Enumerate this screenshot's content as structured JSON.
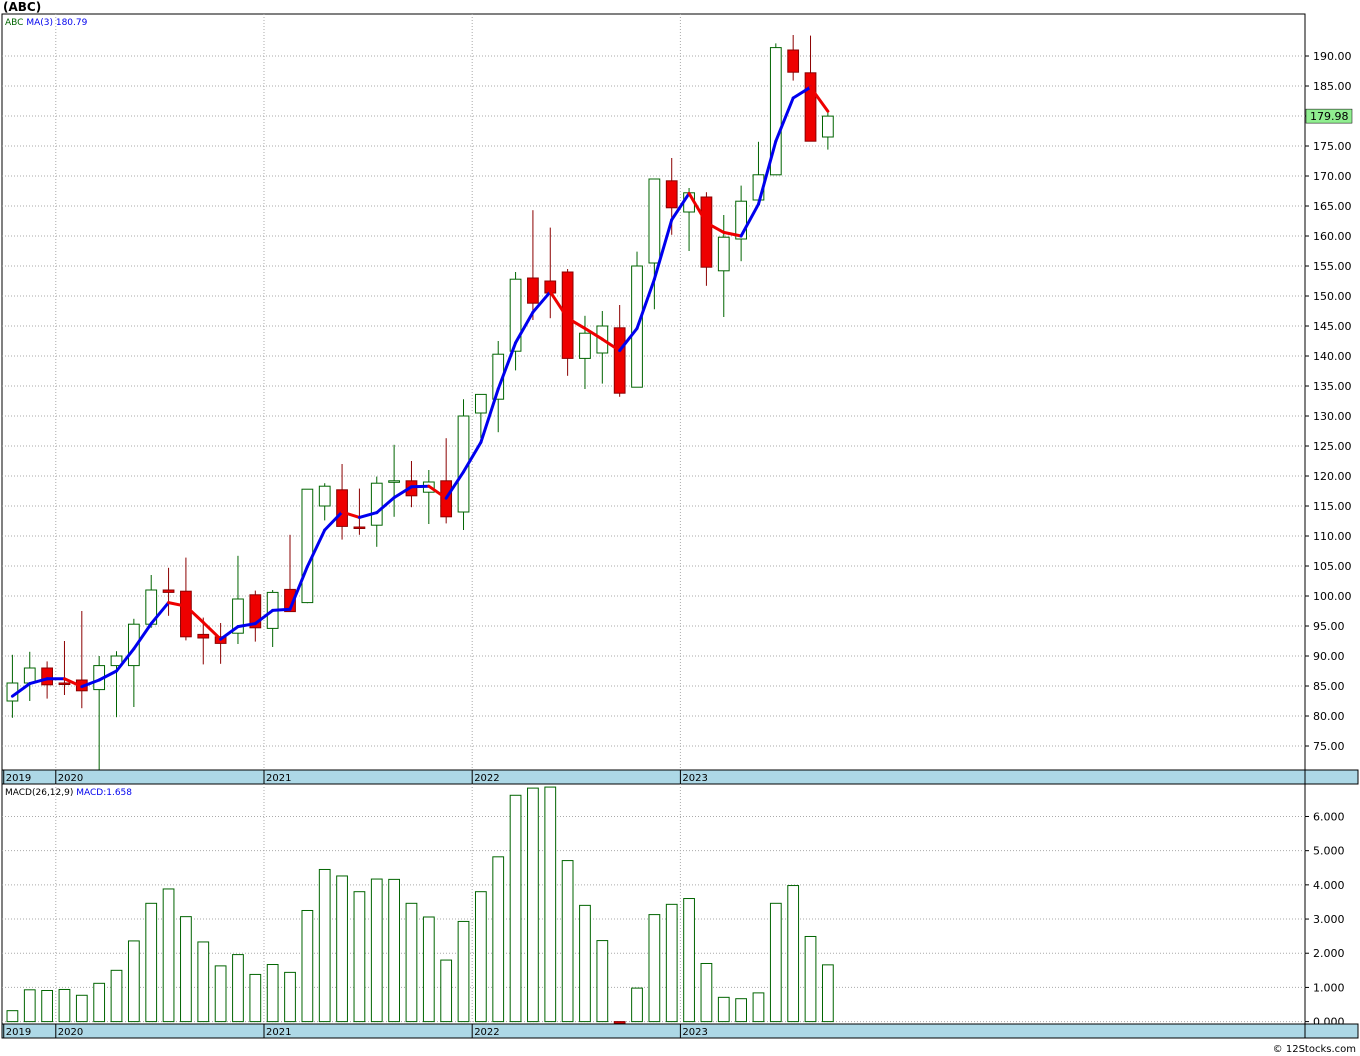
{
  "title": "(ABC)",
  "credit": "© 12Stocks.com",
  "colors": {
    "up": "#006400",
    "down": "#ee0000",
    "ma_up": "#0000ee",
    "ma_down": "#ee0000",
    "band": "#add8e6",
    "last_price_bg": "#90ee90",
    "grid": "#aaaaaa"
  },
  "chart_data": [
    {
      "type": "candlestick",
      "legend": {
        "symbol": "ABC",
        "ma_label": "MA(3)",
        "ma_value": "180.79"
      },
      "last_price_label": "179.98",
      "ylim": [
        71,
        197
      ],
      "yticks": [
        75,
        80,
        85,
        90,
        95,
        100,
        105,
        110,
        115,
        120,
        125,
        130,
        135,
        140,
        145,
        150,
        155,
        160,
        165,
        170,
        175,
        180,
        185,
        190
      ],
      "xtick_labels": [
        {
          "label": "2019",
          "index": 0
        },
        {
          "label": "2020",
          "index": 3
        },
        {
          "label": "2021",
          "index": 15
        },
        {
          "label": "2022",
          "index": 27
        },
        {
          "label": "2023",
          "index": 39
        }
      ],
      "x_range": [
        -0.6,
        74.5
      ],
      "ohlc": [
        [
          82.5,
          90.2,
          79.7,
          85.5
        ],
        [
          85.5,
          90.7,
          82.5,
          88.0
        ],
        [
          88.0,
          89.1,
          82.9,
          85.2
        ],
        [
          85.5,
          92.5,
          83.5,
          85.3
        ],
        [
          86.0,
          97.5,
          81.3,
          84.2
        ],
        [
          84.4,
          90.0,
          71.0,
          88.4
        ],
        [
          88.4,
          90.8,
          79.8,
          90.0
        ],
        [
          88.4,
          96.2,
          81.5,
          95.3
        ],
        [
          95.3,
          103.5,
          94.7,
          101.0
        ],
        [
          101.0,
          104.7,
          96.7,
          100.6
        ],
        [
          100.8,
          106.4,
          92.6,
          93.2
        ],
        [
          93.6,
          96.4,
          88.6,
          93.0
        ],
        [
          93.2,
          95.5,
          88.7,
          92.1
        ],
        [
          93.8,
          106.7,
          92.0,
          99.5
        ],
        [
          100.2,
          100.9,
          92.4,
          94.7
        ],
        [
          94.6,
          101.0,
          91.5,
          100.6
        ],
        [
          101.1,
          110.2,
          97.7,
          97.4
        ],
        [
          98.9,
          117.6,
          98.8,
          117.8
        ],
        [
          115.0,
          118.8,
          112.6,
          118.3
        ],
        [
          117.7,
          122.0,
          109.4,
          111.6
        ],
        [
          111.5,
          117.9,
          110.2,
          111.3
        ],
        [
          111.8,
          119.9,
          108.2,
          118.8
        ],
        [
          119.0,
          125.2,
          113.2,
          119.2
        ],
        [
          119.2,
          122.5,
          114.8,
          116.7
        ],
        [
          117.3,
          121.0,
          112.0,
          119.0
        ],
        [
          119.2,
          126.3,
          112.1,
          113.2
        ],
        [
          114.0,
          132.8,
          111.0,
          130.0
        ],
        [
          130.5,
          133.3,
          126.3,
          133.6
        ],
        [
          132.8,
          142.5,
          127.3,
          140.3
        ],
        [
          140.8,
          154.0,
          137.6,
          152.8
        ],
        [
          153.0,
          164.3,
          146.0,
          148.8
        ],
        [
          152.5,
          161.4,
          146.3,
          150.5
        ],
        [
          154.0,
          154.5,
          136.7,
          139.6
        ],
        [
          139.6,
          146.7,
          134.5,
          143.8
        ],
        [
          140.5,
          147.5,
          135.4,
          145.0
        ],
        [
          144.7,
          148.5,
          133.2,
          133.8
        ],
        [
          134.8,
          157.4,
          134.8,
          155.0
        ],
        [
          155.5,
          169.3,
          147.8,
          169.5
        ],
        [
          169.2,
          173.0,
          160.2,
          164.7
        ],
        [
          164.0,
          168.0,
          157.5,
          167.2
        ],
        [
          166.5,
          167.3,
          151.7,
          154.8
        ],
        [
          154.2,
          163.5,
          146.5,
          159.8
        ],
        [
          159.5,
          168.4,
          155.8,
          165.8
        ],
        [
          166.0,
          175.7,
          165.8,
          170.2
        ],
        [
          170.2,
          192.1,
          170.3,
          191.4
        ],
        [
          191.0,
          193.5,
          185.9,
          187.3
        ],
        [
          187.2,
          193.4,
          175.8,
          175.8
        ],
        [
          176.5,
          181.0,
          174.4,
          179.98
        ]
      ],
      "ma3": [
        83.3,
        85.4,
        86.2,
        86.2,
        84.9,
        86.0,
        87.5,
        91.2,
        95.4,
        98.9,
        98.3,
        95.6,
        92.8,
        94.9,
        95.4,
        97.6,
        97.8,
        104.9,
        111.0,
        114.0,
        113.1,
        113.9,
        116.4,
        118.2,
        118.3,
        116.3,
        120.7,
        125.6,
        134.5,
        142.2,
        147.3,
        150.7,
        146.3,
        144.6,
        142.8,
        140.9,
        144.6,
        152.8,
        162.7,
        167.1,
        162.2,
        160.6,
        160.0,
        165.3,
        175.8,
        183.0,
        184.8,
        180.8
      ]
    },
    {
      "type": "bar",
      "legend": {
        "label": "MACD(26,12,9)",
        "value_label": "MACD:1.658"
      },
      "ylim": [
        -0.07,
        6.95
      ],
      "yticks": [
        "0.000",
        "1.000",
        "2.000",
        "3.000",
        "4.000",
        "5.000",
        "6.000"
      ],
      "xtick_labels": [
        {
          "label": "2019",
          "index": 0
        },
        {
          "label": "2020",
          "index": 3
        },
        {
          "label": "2021",
          "index": 15
        },
        {
          "label": "2022",
          "index": 27
        },
        {
          "label": "2023",
          "index": 39
        }
      ],
      "values": [
        0.32,
        0.93,
        0.91,
        0.94,
        0.77,
        1.12,
        1.5,
        2.36,
        3.46,
        3.88,
        3.07,
        2.33,
        1.63,
        1.96,
        1.38,
        1.67,
        1.44,
        3.25,
        4.45,
        4.26,
        3.8,
        4.17,
        4.16,
        3.46,
        3.06,
        1.8,
        2.93,
        3.8,
        4.82,
        6.62,
        6.83,
        6.86,
        4.71,
        3.4,
        2.37,
        -0.05,
        0.98,
        3.13,
        3.43,
        3.6,
        1.7,
        0.71,
        0.67,
        0.84,
        3.46,
        3.98,
        2.49,
        1.66
      ]
    }
  ]
}
